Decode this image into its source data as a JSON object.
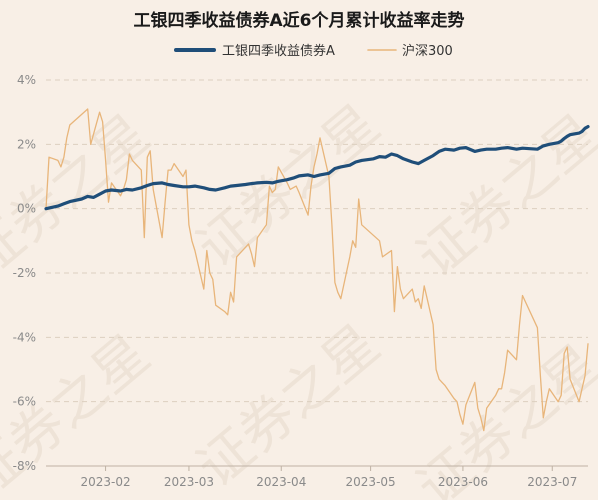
{
  "chart_data": {
    "type": "line",
    "title": "工银四季收益债券A近6个月累计收益率走势",
    "xlabel": "",
    "ylabel": "",
    "ylim": [
      -8,
      4
    ],
    "yticks": [
      4,
      2,
      0,
      -2,
      -4,
      -6,
      -8
    ],
    "ytick_labels": [
      "4%",
      "2%",
      "0%",
      "-2%",
      "-4%",
      "-6%",
      "-8%"
    ],
    "xticks": [
      "2023-02-01",
      "2023-03-01",
      "2023-04-01",
      "2023-05-01",
      "2023-06-01",
      "2023-07-01"
    ],
    "xtick_labels": [
      "2023-02",
      "2023-03",
      "2023-04",
      "2023-05",
      "2023-06",
      "2023-07"
    ],
    "x_range": [
      "2023-01-12",
      "2023-07-13"
    ],
    "grid": "horizontal",
    "legend_position": "top-center",
    "background": "#f8efe6",
    "watermark_text": "证券之星",
    "series": [
      {
        "name": "工银四季收益债券A",
        "color": "#1f4e79",
        "points": [
          [
            "2023-01-12",
            0.0
          ],
          [
            "2023-01-16",
            0.08
          ],
          [
            "2023-01-18",
            0.15
          ],
          [
            "2023-01-20",
            0.22
          ],
          [
            "2023-01-24",
            0.3
          ],
          [
            "2023-01-26",
            0.38
          ],
          [
            "2023-01-28",
            0.35
          ],
          [
            "2023-01-30",
            0.45
          ],
          [
            "2023-02-01",
            0.55
          ],
          [
            "2023-02-03",
            0.58
          ],
          [
            "2023-02-06",
            0.55
          ],
          [
            "2023-02-08",
            0.6
          ],
          [
            "2023-02-10",
            0.58
          ],
          [
            "2023-02-13",
            0.65
          ],
          [
            "2023-02-15",
            0.72
          ],
          [
            "2023-02-17",
            0.78
          ],
          [
            "2023-02-20",
            0.8
          ],
          [
            "2023-02-22",
            0.75
          ],
          [
            "2023-02-24",
            0.72
          ],
          [
            "2023-02-27",
            0.68
          ],
          [
            "2023-03-01",
            0.68
          ],
          [
            "2023-03-03",
            0.7
          ],
          [
            "2023-03-06",
            0.65
          ],
          [
            "2023-03-08",
            0.6
          ],
          [
            "2023-03-10",
            0.58
          ],
          [
            "2023-03-13",
            0.65
          ],
          [
            "2023-03-15",
            0.7
          ],
          [
            "2023-03-17",
            0.72
          ],
          [
            "2023-03-20",
            0.75
          ],
          [
            "2023-03-22",
            0.78
          ],
          [
            "2023-03-24",
            0.8
          ],
          [
            "2023-03-27",
            0.82
          ],
          [
            "2023-03-29",
            0.8
          ],
          [
            "2023-03-31",
            0.85
          ],
          [
            "2023-04-03",
            0.9
          ],
          [
            "2023-04-05",
            0.95
          ],
          [
            "2023-04-07",
            1.02
          ],
          [
            "2023-04-10",
            1.05
          ],
          [
            "2023-04-12",
            1.0
          ],
          [
            "2023-04-14",
            1.05
          ],
          [
            "2023-04-17",
            1.1
          ],
          [
            "2023-04-19",
            1.25
          ],
          [
            "2023-04-21",
            1.3
          ],
          [
            "2023-04-24",
            1.35
          ],
          [
            "2023-04-26",
            1.45
          ],
          [
            "2023-04-28",
            1.5
          ],
          [
            "2023-05-02",
            1.55
          ],
          [
            "2023-05-04",
            1.62
          ],
          [
            "2023-05-06",
            1.6
          ],
          [
            "2023-05-08",
            1.7
          ],
          [
            "2023-05-10",
            1.65
          ],
          [
            "2023-05-12",
            1.55
          ],
          [
            "2023-05-15",
            1.45
          ],
          [
            "2023-05-17",
            1.4
          ],
          [
            "2023-05-19",
            1.5
          ],
          [
            "2023-05-22",
            1.65
          ],
          [
            "2023-05-24",
            1.78
          ],
          [
            "2023-05-26",
            1.85
          ],
          [
            "2023-05-29",
            1.82
          ],
          [
            "2023-05-31",
            1.88
          ],
          [
            "2023-06-02",
            1.9
          ],
          [
            "2023-06-05",
            1.78
          ],
          [
            "2023-06-07",
            1.82
          ],
          [
            "2023-06-09",
            1.85
          ],
          [
            "2023-06-12",
            1.85
          ],
          [
            "2023-06-14",
            1.88
          ],
          [
            "2023-06-16",
            1.9
          ],
          [
            "2023-06-19",
            1.85
          ],
          [
            "2023-06-21",
            1.88
          ],
          [
            "2023-06-26",
            1.85
          ],
          [
            "2023-06-28",
            1.95
          ],
          [
            "2023-06-30",
            2.0
          ],
          [
            "2023-07-03",
            2.05
          ],
          [
            "2023-07-04",
            2.1
          ],
          [
            "2023-07-05",
            2.18
          ],
          [
            "2023-07-06",
            2.25
          ],
          [
            "2023-07-07",
            2.3
          ],
          [
            "2023-07-10",
            2.35
          ],
          [
            "2023-07-11",
            2.4
          ],
          [
            "2023-07-12",
            2.5
          ],
          [
            "2023-07-13",
            2.55
          ]
        ]
      },
      {
        "name": "沪深300",
        "color": "#e8b57a",
        "points": [
          [
            "2023-01-12",
            0.0
          ],
          [
            "2023-01-13",
            1.6
          ],
          [
            "2023-01-16",
            1.5
          ],
          [
            "2023-01-17",
            1.3
          ],
          [
            "2023-01-18",
            1.6
          ],
          [
            "2023-01-19",
            2.2
          ],
          [
            "2023-01-20",
            2.6
          ],
          [
            "2023-01-26",
            3.1
          ],
          [
            "2023-01-27",
            2.0
          ],
          [
            "2023-01-30",
            3.0
          ],
          [
            "2023-01-31",
            2.7
          ],
          [
            "2023-02-01",
            1.5
          ],
          [
            "2023-02-02",
            0.2
          ],
          [
            "2023-02-03",
            0.8
          ],
          [
            "2023-02-06",
            0.4
          ],
          [
            "2023-02-07",
            0.6
          ],
          [
            "2023-02-08",
            0.9
          ],
          [
            "2023-02-09",
            1.7
          ],
          [
            "2023-02-10",
            1.5
          ],
          [
            "2023-02-13",
            1.2
          ],
          [
            "2023-02-14",
            -0.9
          ],
          [
            "2023-02-15",
            1.6
          ],
          [
            "2023-02-16",
            1.8
          ],
          [
            "2023-02-17",
            0.6
          ],
          [
            "2023-02-20",
            -0.9
          ],
          [
            "2023-02-21",
            0.2
          ],
          [
            "2023-02-22",
            1.2
          ],
          [
            "2023-02-23",
            1.2
          ],
          [
            "2023-02-24",
            1.4
          ],
          [
            "2023-02-27",
            1.0
          ],
          [
            "2023-02-28",
            1.2
          ],
          [
            "2023-03-01",
            -0.5
          ],
          [
            "2023-03-02",
            -1.0
          ],
          [
            "2023-03-03",
            -1.3
          ],
          [
            "2023-03-06",
            -2.5
          ],
          [
            "2023-03-07",
            -1.3
          ],
          [
            "2023-03-08",
            -2.0
          ],
          [
            "2023-03-09",
            -2.2
          ],
          [
            "2023-03-10",
            -3.0
          ],
          [
            "2023-03-13",
            -3.2
          ],
          [
            "2023-03-14",
            -3.3
          ],
          [
            "2023-03-15",
            -2.6
          ],
          [
            "2023-03-16",
            -2.9
          ],
          [
            "2023-03-17",
            -1.5
          ],
          [
            "2023-03-20",
            -1.2
          ],
          [
            "2023-03-21",
            -1.1
          ],
          [
            "2023-03-22",
            -1.4
          ],
          [
            "2023-03-23",
            -1.8
          ],
          [
            "2023-03-24",
            -0.9
          ],
          [
            "2023-03-27",
            -0.5
          ],
          [
            "2023-03-28",
            0.7
          ],
          [
            "2023-03-29",
            0.5
          ],
          [
            "2023-03-30",
            0.6
          ],
          [
            "2023-03-31",
            1.3
          ],
          [
            "2023-04-03",
            0.8
          ],
          [
            "2023-04-04",
            0.6
          ],
          [
            "2023-04-06",
            0.7
          ],
          [
            "2023-04-07",
            0.5
          ],
          [
            "2023-04-10",
            -0.2
          ],
          [
            "2023-04-11",
            0.7
          ],
          [
            "2023-04-12",
            1.3
          ],
          [
            "2023-04-13",
            1.7
          ],
          [
            "2023-04-14",
            2.2
          ],
          [
            "2023-04-17",
            1.0
          ],
          [
            "2023-04-18",
            -0.5
          ],
          [
            "2023-04-19",
            -2.3
          ],
          [
            "2023-04-20",
            -2.6
          ],
          [
            "2023-04-21",
            -2.8
          ],
          [
            "2023-04-24",
            -1.5
          ],
          [
            "2023-04-25",
            -1.0
          ],
          [
            "2023-04-26",
            -1.2
          ],
          [
            "2023-04-27",
            0.3
          ],
          [
            "2023-04-28",
            -0.5
          ],
          [
            "2023-05-04",
            -1.0
          ],
          [
            "2023-05-05",
            -1.5
          ],
          [
            "2023-05-08",
            -1.3
          ],
          [
            "2023-05-09",
            -3.2
          ],
          [
            "2023-05-10",
            -1.8
          ],
          [
            "2023-05-11",
            -2.5
          ],
          [
            "2023-05-12",
            -2.8
          ],
          [
            "2023-05-15",
            -2.5
          ],
          [
            "2023-05-16",
            -2.9
          ],
          [
            "2023-05-17",
            -2.8
          ],
          [
            "2023-05-18",
            -3.1
          ],
          [
            "2023-05-19",
            -2.4
          ],
          [
            "2023-05-22",
            -3.6
          ],
          [
            "2023-05-23",
            -5.0
          ],
          [
            "2023-05-24",
            -5.3
          ],
          [
            "2023-05-25",
            -5.4
          ],
          [
            "2023-05-26",
            -5.5
          ],
          [
            "2023-05-29",
            -5.9
          ],
          [
            "2023-05-30",
            -6.0
          ],
          [
            "2023-05-31",
            -6.4
          ],
          [
            "2023-06-01",
            -6.7
          ],
          [
            "2023-06-02",
            -6.1
          ],
          [
            "2023-06-05",
            -5.4
          ],
          [
            "2023-06-06",
            -6.2
          ],
          [
            "2023-06-07",
            -6.5
          ],
          [
            "2023-06-08",
            -6.9
          ],
          [
            "2023-06-09",
            -6.2
          ],
          [
            "2023-06-12",
            -5.8
          ],
          [
            "2023-06-13",
            -5.6
          ],
          [
            "2023-06-14",
            -5.6
          ],
          [
            "2023-06-15",
            -5.1
          ],
          [
            "2023-06-16",
            -4.4
          ],
          [
            "2023-06-19",
            -4.7
          ],
          [
            "2023-06-20",
            -3.6
          ],
          [
            "2023-06-21",
            -2.7
          ],
          [
            "2023-06-26",
            -3.7
          ],
          [
            "2023-06-27",
            -5.2
          ],
          [
            "2023-06-28",
            -6.5
          ],
          [
            "2023-06-29",
            -6.0
          ],
          [
            "2023-06-30",
            -5.6
          ],
          [
            "2023-07-03",
            -6.0
          ],
          [
            "2023-07-04",
            -5.8
          ],
          [
            "2023-07-05",
            -4.5
          ],
          [
            "2023-07-06",
            -4.3
          ],
          [
            "2023-07-07",
            -5.3
          ],
          [
            "2023-07-10",
            -6.0
          ],
          [
            "2023-07-11",
            -5.6
          ],
          [
            "2023-07-12",
            -5.2
          ],
          [
            "2023-07-13",
            -4.2
          ]
        ]
      }
    ]
  }
}
